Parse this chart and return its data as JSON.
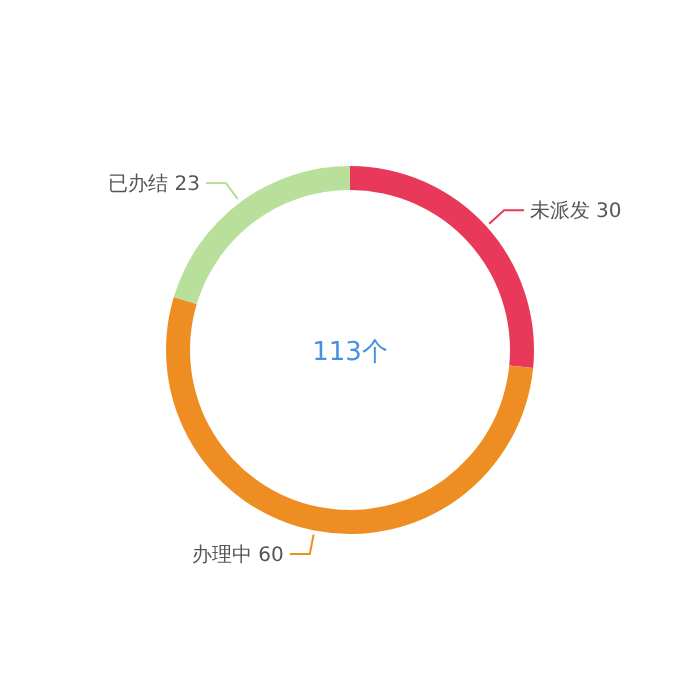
{
  "chart_data": {
    "type": "donut",
    "categories": [
      "未派发",
      "办理中",
      "已办结"
    ],
    "values": [
      30,
      60,
      23
    ],
    "colors": [
      "#e8395a",
      "#ee8e22",
      "#b9e09a"
    ],
    "data_labels": true,
    "annotations": [
      "113个"
    ]
  }
}
